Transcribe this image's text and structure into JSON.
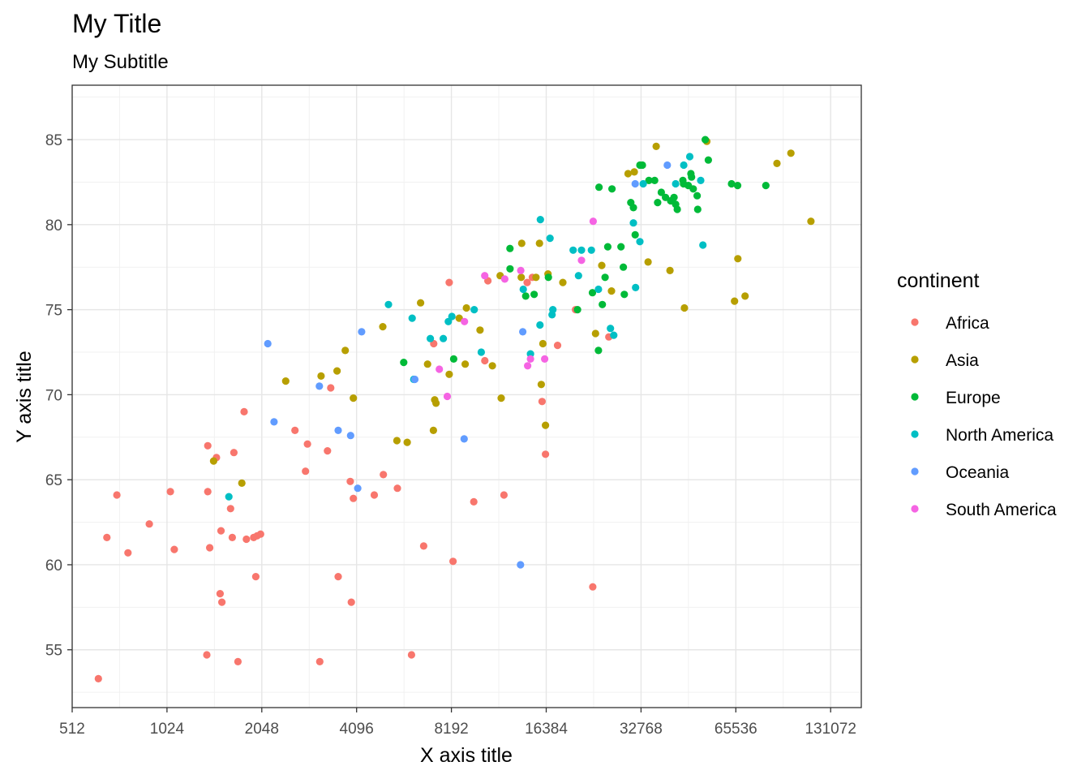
{
  "chart_data": {
    "type": "scatter",
    "title": "My Title",
    "subtitle": "My Subtitle",
    "xlabel": "X axis title",
    "ylabel": "Y axis title",
    "x_scale": "log2",
    "xlim": [
      512,
      164000
    ],
    "ylim": [
      51.6,
      88.2
    ],
    "x_ticks": [
      512,
      1024,
      2048,
      4096,
      8192,
      16384,
      32768,
      65536,
      131072
    ],
    "x_tick_labels": [
      "512",
      "1024",
      "2048",
      "4096",
      "8192",
      "16384",
      "32768",
      "65536",
      "131072"
    ],
    "y_ticks": [
      55,
      60,
      65,
      70,
      75,
      80,
      85
    ],
    "y_tick_labels": [
      "55",
      "60",
      "65",
      "70",
      "75",
      "80",
      "85"
    ],
    "grid": true,
    "legend": {
      "title": "continent",
      "position": "right"
    },
    "series": [
      {
        "name": "Africa",
        "color": "#F8766D",
        "points": [
          [
            620,
            53.3
          ],
          [
            660,
            61.6
          ],
          [
            710,
            64.1
          ],
          [
            770,
            60.7
          ],
          [
            900,
            62.4
          ],
          [
            1050,
            64.3
          ],
          [
            1080,
            60.9
          ],
          [
            1370,
            54.7
          ],
          [
            1380,
            67.0
          ],
          [
            1380,
            64.3
          ],
          [
            1400,
            61.0
          ],
          [
            1470,
            66.3
          ],
          [
            1510,
            58.3
          ],
          [
            1530,
            57.8
          ],
          [
            1520,
            62.0
          ],
          [
            1630,
            63.3
          ],
          [
            1650,
            61.6
          ],
          [
            1670,
            66.6
          ],
          [
            1720,
            54.3
          ],
          [
            1800,
            69.0
          ],
          [
            1830,
            61.5
          ],
          [
            1930,
            61.6
          ],
          [
            1960,
            59.3
          ],
          [
            1980,
            61.7
          ],
          [
            2030,
            61.8
          ],
          [
            2610,
            67.9
          ],
          [
            2820,
            65.5
          ],
          [
            2860,
            67.1
          ],
          [
            3130,
            54.3
          ],
          [
            3310,
            66.7
          ],
          [
            3390,
            70.4
          ],
          [
            3580,
            59.3
          ],
          [
            3910,
            64.9
          ],
          [
            3940,
            57.8
          ],
          [
            4000,
            63.9
          ],
          [
            4660,
            64.1
          ],
          [
            4980,
            65.3
          ],
          [
            5520,
            64.5
          ],
          [
            6120,
            54.7
          ],
          [
            6690,
            61.1
          ],
          [
            7200,
            73.0
          ],
          [
            8060,
            76.6
          ],
          [
            8290,
            60.2
          ],
          [
            9650,
            63.7
          ],
          [
            10460,
            72.0
          ],
          [
            10700,
            76.7
          ],
          [
            12030,
            64.1
          ],
          [
            14250,
            76.6
          ],
          [
            14800,
            76.9
          ],
          [
            15900,
            69.6
          ],
          [
            16300,
            66.5
          ],
          [
            17800,
            72.9
          ],
          [
            20300,
            75.0
          ],
          [
            23030,
            58.7
          ],
          [
            25900,
            73.4
          ]
        ]
      },
      {
        "name": "Asia",
        "color": "#B79F00",
        "points": [
          [
            1440,
            66.1
          ],
          [
            1770,
            64.8
          ],
          [
            2440,
            70.8
          ],
          [
            3160,
            71.1
          ],
          [
            3550,
            71.4
          ],
          [
            3770,
            72.6
          ],
          [
            4000,
            69.8
          ],
          [
            4960,
            74.0
          ],
          [
            5500,
            67.3
          ],
          [
            5930,
            67.2
          ],
          [
            6540,
            75.4
          ],
          [
            6880,
            71.8
          ],
          [
            7250,
            69.7
          ],
          [
            7320,
            69.5
          ],
          [
            7180,
            67.9
          ],
          [
            8060,
            71.2
          ],
          [
            8670,
            74.5
          ],
          [
            9140,
            75.1
          ],
          [
            9060,
            71.8
          ],
          [
            10100,
            73.8
          ],
          [
            11050,
            71.7
          ],
          [
            11700,
            77.0
          ],
          [
            11790,
            69.8
          ],
          [
            13700,
            78.9
          ],
          [
            13650,
            76.9
          ],
          [
            15600,
            78.9
          ],
          [
            15200,
            76.9
          ],
          [
            15990,
            73.0
          ],
          [
            15800,
            70.6
          ],
          [
            16300,
            68.2
          ],
          [
            16600,
            77.1
          ],
          [
            18500,
            76.6
          ],
          [
            23500,
            73.6
          ],
          [
            24600,
            77.6
          ],
          [
            26400,
            76.1
          ],
          [
            29800,
            83.0
          ],
          [
            31200,
            83.1
          ],
          [
            34500,
            77.8
          ],
          [
            36600,
            84.6
          ],
          [
            40500,
            77.3
          ],
          [
            45000,
            75.1
          ],
          [
            53000,
            84.9
          ],
          [
            64900,
            75.5
          ],
          [
            66500,
            78.0
          ],
          [
            70100,
            75.8
          ],
          [
            88500,
            83.6
          ],
          [
            98000,
            84.2
          ],
          [
            113500,
            80.2
          ]
        ]
      },
      {
        "name": "Europe",
        "color": "#00BA38",
        "points": [
          [
            5780,
            71.9
          ],
          [
            8330,
            72.1
          ],
          [
            12570,
            78.6
          ],
          [
            12580,
            77.4
          ],
          [
            14100,
            75.8
          ],
          [
            15000,
            75.9
          ],
          [
            16650,
            76.9
          ],
          [
            20600,
            75.0
          ],
          [
            22970,
            76.0
          ],
          [
            24000,
            72.6
          ],
          [
            24700,
            75.3
          ],
          [
            24100,
            82.2
          ],
          [
            25200,
            76.9
          ],
          [
            25700,
            78.7
          ],
          [
            26500,
            82.1
          ],
          [
            28300,
            78.7
          ],
          [
            28800,
            77.5
          ],
          [
            29000,
            75.9
          ],
          [
            30400,
            81.3
          ],
          [
            31000,
            81.0
          ],
          [
            31400,
            79.4
          ],
          [
            32500,
            83.5
          ],
          [
            33100,
            83.5
          ],
          [
            34700,
            82.6
          ],
          [
            36200,
            82.6
          ],
          [
            37000,
            81.3
          ],
          [
            38000,
            81.9
          ],
          [
            39200,
            81.6
          ],
          [
            40700,
            81.4
          ],
          [
            41700,
            81.6
          ],
          [
            42200,
            81.2
          ],
          [
            42700,
            80.9
          ],
          [
            44700,
            82.4
          ],
          [
            44500,
            82.6
          ],
          [
            46300,
            82.3
          ],
          [
            47200,
            83.0
          ],
          [
            47400,
            82.8
          ],
          [
            48000,
            82.1
          ],
          [
            49400,
            81.7
          ],
          [
            49600,
            80.9
          ],
          [
            52400,
            85.0
          ],
          [
            53600,
            83.8
          ],
          [
            63500,
            82.4
          ],
          [
            66400,
            82.3
          ],
          [
            81600,
            82.3
          ]
        ]
      },
      {
        "name": "North America",
        "color": "#00BFC4",
        "points": [
          [
            1610,
            64.0
          ],
          [
            5170,
            75.3
          ],
          [
            6150,
            74.5
          ],
          [
            6220,
            70.9
          ],
          [
            7020,
            73.3
          ],
          [
            7720,
            73.3
          ],
          [
            8010,
            74.3
          ],
          [
            8220,
            74.6
          ],
          [
            9680,
            75.0
          ],
          [
            10190,
            72.5
          ],
          [
            13850,
            76.2
          ],
          [
            14600,
            72.4
          ],
          [
            15650,
            74.1
          ],
          [
            17200,
            75.0
          ],
          [
            17100,
            74.7
          ],
          [
            16850,
            79.2
          ],
          [
            19950,
            78.5
          ],
          [
            20750,
            77.0
          ],
          [
            21200,
            78.5
          ],
          [
            22800,
            78.5
          ],
          [
            24000,
            76.2
          ],
          [
            26200,
            73.9
          ],
          [
            26850,
            73.5
          ],
          [
            31000,
            80.1
          ],
          [
            31500,
            76.3
          ],
          [
            32500,
            79.0
          ],
          [
            33300,
            82.4
          ],
          [
            42200,
            82.4
          ],
          [
            44800,
            83.5
          ],
          [
            46800,
            84.0
          ],
          [
            50700,
            82.6
          ],
          [
            51500,
            78.8
          ],
          [
            15700,
            80.3
          ]
        ]
      },
      {
        "name": "Oceania",
        "color": "#619CFF",
        "points": [
          [
            2140,
            73.0
          ],
          [
            2240,
            68.4
          ],
          [
            3120,
            70.5
          ],
          [
            3580,
            67.9
          ],
          [
            3920,
            67.6
          ],
          [
            4130,
            64.5
          ],
          [
            4250,
            73.7
          ],
          [
            6270,
            70.9
          ],
          [
            8990,
            67.4
          ],
          [
            13580,
            60.0
          ],
          [
            13800,
            73.7
          ],
          [
            31400,
            82.4
          ],
          [
            39700,
            83.5
          ]
        ]
      },
      {
        "name": "South America",
        "color": "#F564E3",
        "points": [
          [
            7500,
            71.5
          ],
          [
            7950,
            69.9
          ],
          [
            9010,
            74.3
          ],
          [
            10450,
            77.0
          ],
          [
            12100,
            76.8
          ],
          [
            13600,
            77.3
          ],
          [
            14300,
            71.7
          ],
          [
            14600,
            72.1
          ],
          [
            16200,
            72.1
          ],
          [
            21200,
            77.9
          ],
          [
            23100,
            80.2
          ]
        ]
      }
    ]
  }
}
